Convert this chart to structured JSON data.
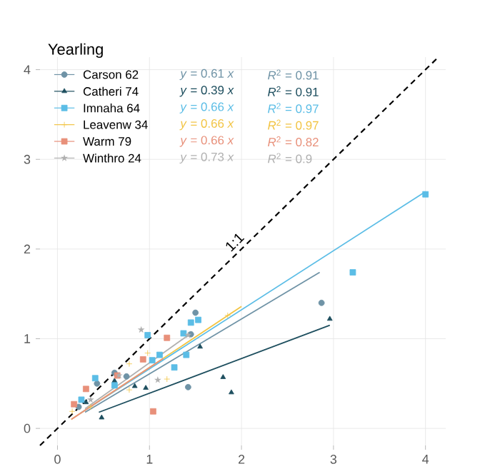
{
  "chart_data": {
    "type": "scatter",
    "legend_title": "Yearling",
    "legend": "top left",
    "grid": true,
    "xlim": [
      -0.19,
      4.22
    ],
    "ylim": [
      -0.19,
      4.14
    ],
    "xticks": [
      0,
      1,
      2,
      3,
      4
    ],
    "yticks": [
      0,
      1,
      2,
      3,
      4
    ],
    "series": [
      {
        "name": "Carson 62",
        "color": "#6f93a6",
        "marker": "circle",
        "x": [
          0.23,
          0.43,
          0.62,
          0.75,
          1.42,
          1.45,
          1.5,
          2.87
        ],
        "values": [
          0.24,
          0.5,
          0.62,
          0.58,
          0.46,
          1.05,
          1.29,
          1.4
        ]
      },
      {
        "name": "Catheri 74",
        "color": "#1d4e5e",
        "marker": "triangle",
        "x": [
          0.31,
          0.48,
          0.62,
          0.84,
          0.96,
          1.55,
          1.8,
          1.89,
          2.96
        ],
        "values": [
          0.29,
          0.12,
          0.53,
          0.47,
          0.45,
          0.91,
          0.57,
          0.4,
          1.22
        ]
      },
      {
        "name": "Imnaha 64",
        "color": "#5bbde6",
        "marker": "square",
        "x": [
          0.26,
          0.41,
          0.62,
          0.98,
          1.03,
          1.11,
          1.27,
          1.37,
          1.4,
          1.45,
          1.53,
          3.21,
          4.0
        ],
        "values": [
          0.32,
          0.56,
          0.48,
          1.04,
          0.76,
          0.82,
          0.68,
          1.06,
          0.82,
          1.18,
          1.21,
          1.74,
          2.61
        ]
      },
      {
        "name": "Leavenw 34",
        "color": "#f2c443",
        "marker": "cross",
        "x": [
          0.16,
          0.36,
          0.78,
          0.78,
          0.98,
          1.19,
          1.85
        ],
        "values": [
          0.19,
          0.24,
          0.43,
          0.72,
          0.84,
          0.55,
          1.26
        ]
      },
      {
        "name": "Warm 79",
        "color": "#e8907a",
        "marker": "square",
        "x": [
          0.18,
          0.31,
          0.65,
          0.93,
          1.04,
          1.19
        ],
        "values": [
          0.27,
          0.44,
          0.59,
          0.77,
          0.19,
          1.01
        ]
      },
      {
        "name": "Winthro 24",
        "color": "#b0b0b0",
        "marker": "star",
        "x": [
          0.36,
          0.67,
          0.91,
          1.09,
          1.42
        ],
        "values": [
          0.32,
          0.59,
          1.1,
          0.54,
          1.04
        ]
      },
      {
        "type": "line",
        "color": "#6f93a6",
        "x": [
          0.3,
          2.85
        ],
        "values": [
          0.18,
          1.74
        ]
      },
      {
        "type": "line",
        "color": "#1d4e5e",
        "x": [
          0.45,
          2.96
        ],
        "values": [
          0.18,
          1.15
        ]
      },
      {
        "type": "line",
        "color": "#5bbde6",
        "x": [
          0.25,
          4.0
        ],
        "values": [
          0.17,
          2.64
        ]
      },
      {
        "type": "line",
        "color": "#f2c443",
        "x": [
          0.15,
          2.0
        ],
        "values": [
          0.1,
          1.36
        ]
      },
      {
        "type": "line",
        "color": "#e8907a",
        "x": [
          0.15,
          1.15
        ],
        "values": [
          0.1,
          0.78
        ]
      },
      {
        "type": "line",
        "color": "#b0b0b0",
        "x": [
          0.3,
          1.45
        ],
        "values": [
          0.22,
          1.06
        ]
      },
      {
        "type": "line",
        "color": "#000000",
        "line_style": "dashed",
        "x": [
          -0.19,
          4.14
        ],
        "values": [
          -0.19,
          4.14
        ]
      }
    ],
    "annotations": [
      "*y* = 0.61 *x*",
      "*R*$^{2}$ = 0.91",
      "*y* = 0.39 *x*",
      "*R*$^{2}$ = 0.91",
      "*y* = 0.66 *x*",
      "*R*$^{2}$ = 0.97",
      "*y* = 0.66 *x*",
      "*R*$^{2}$ = 0.97",
      "*y* = 0.66 *x*",
      "*R*$^{2}$ = 0.82",
      "*y* = 0.73 *x*",
      "*R*$^{2}$ = 0.9",
      {
        "text": "1:1",
        "x": 2.0,
        "y": 2.0
      }
    ]
  }
}
